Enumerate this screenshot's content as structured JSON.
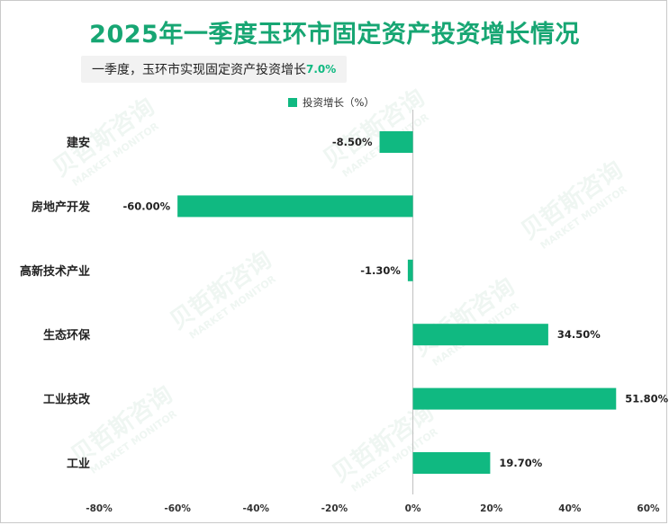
{
  "header": {
    "title": "2025年一季度玉环市固定资产投资增长情况",
    "subtitle_prefix": "一季度，玉环市实现固定资产投资增长",
    "subtitle_value": "7.0%"
  },
  "watermark": {
    "cn": "贝哲斯咨询",
    "en": "MARKET MONITOR"
  },
  "colors": {
    "bar": "#10b981",
    "title": "#17a673",
    "axis": "#bfbfbf"
  },
  "chart_data": {
    "type": "bar",
    "orientation": "horizontal",
    "title": "2025年一季度玉环市固定资产投资增长情况",
    "categories": [
      "建安",
      "房地产开发",
      "高新技术产业",
      "生态环保",
      "工业技改",
      "工业"
    ],
    "series": [
      {
        "name": "投资增长（%）",
        "values": [
          -8.5,
          -60.0,
          -1.3,
          34.5,
          51.8,
          19.7
        ],
        "labels": [
          "-8.50%",
          "-60.00%",
          "-1.30%",
          "34.50%",
          "51.80%",
          "19.70%"
        ]
      }
    ],
    "xlim": [
      -80,
      60
    ],
    "xticks": [
      -80,
      -60,
      -40,
      -20,
      0,
      20,
      40,
      60
    ],
    "xtick_labels": [
      "-80%",
      "-60%",
      "-40%",
      "-20%",
      "0%",
      "20%",
      "40%",
      "60%"
    ],
    "legend": "top",
    "grid": false
  }
}
